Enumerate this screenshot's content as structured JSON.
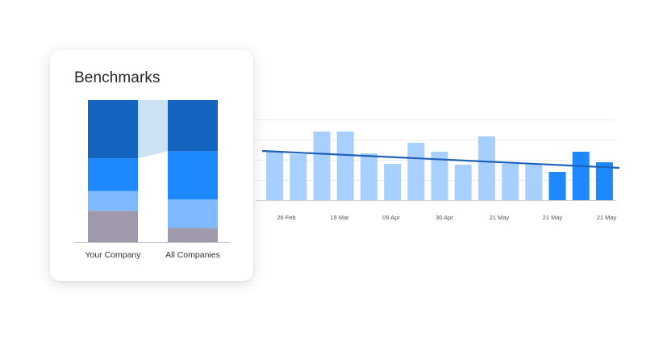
{
  "colors": {
    "dark_blue": "#1565c0",
    "blue": "#1e88ff",
    "light_blue": "#7fbaff",
    "pale_blue": "#a8d0ff",
    "gray": "#9f99ab",
    "connector": "#cde1f5",
    "trend_line": "#1f63b8"
  },
  "benchmarks": {
    "title": "Benchmarks"
  },
  "chart_data": [
    {
      "type": "bar",
      "stacked": true,
      "title": "Benchmarks",
      "categories": [
        "Your Company",
        "All Companies"
      ],
      "series": [
        {
          "color": "#9f99ab",
          "values": [
            0.22,
            0.1
          ]
        },
        {
          "color": "#7fbaff",
          "values": [
            0.14,
            0.2
          ]
        },
        {
          "color": "#1e88ff",
          "values": [
            0.23,
            0.34
          ]
        },
        {
          "color": "#1565c0",
          "values": [
            0.41,
            0.36
          ]
        }
      ],
      "ylim": [
        0,
        1
      ],
      "grid": false,
      "legend": "none"
    },
    {
      "type": "bar",
      "x_tick_labels": [
        "26 Feb",
        "19 Mar",
        "09 Apr",
        "30 Apr",
        "21 May",
        "21 May",
        "21 May"
      ],
      "values": [
        60,
        57,
        85,
        85,
        58,
        45,
        71,
        60,
        44,
        79,
        45,
        45,
        35,
        60,
        47
      ],
      "highlighted": [
        false,
        false,
        false,
        false,
        false,
        false,
        false,
        false,
        false,
        false,
        false,
        false,
        true,
        true,
        true
      ],
      "trend": [
        61,
        40
      ],
      "ylim": [
        0,
        100
      ],
      "grid": true,
      "legend": "none"
    }
  ]
}
